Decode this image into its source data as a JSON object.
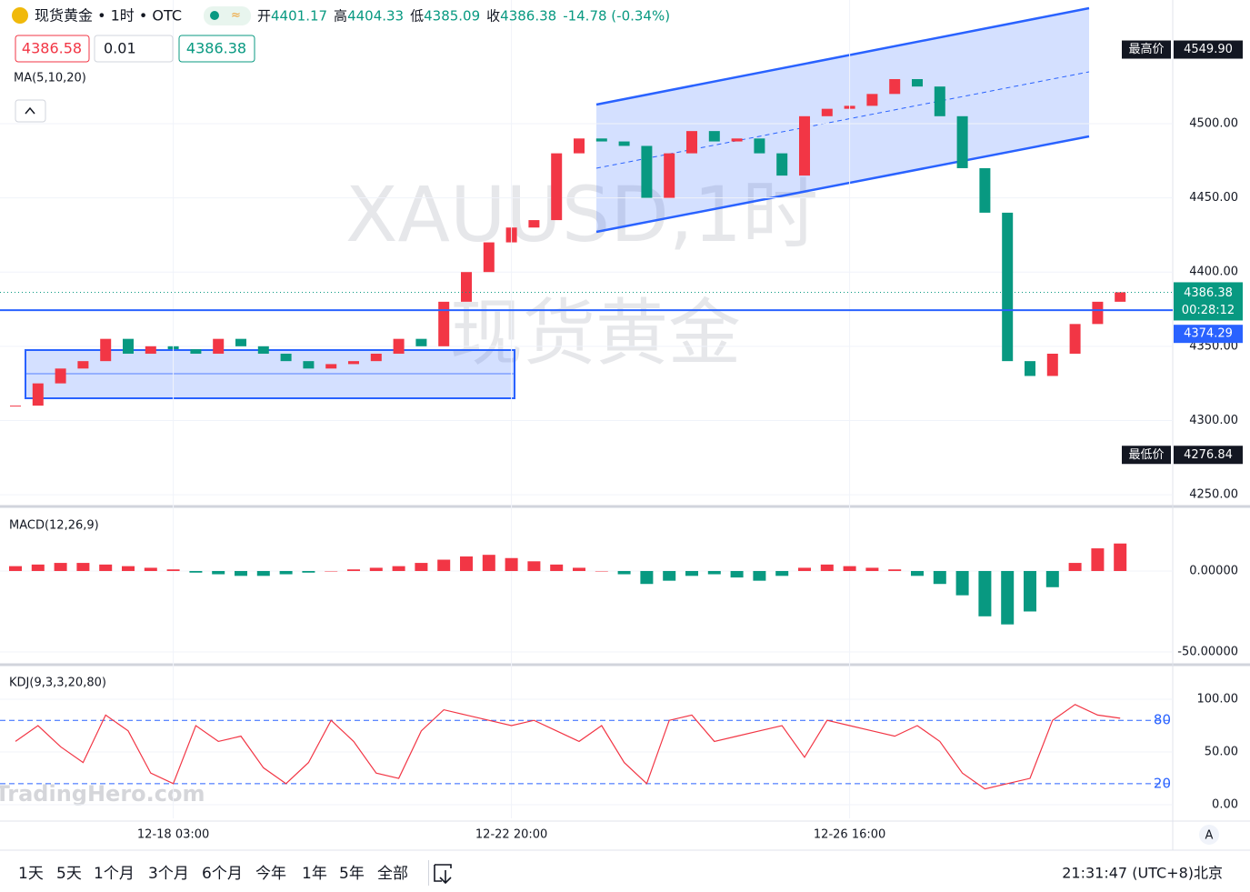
{
  "header": {
    "symbol": "现货黄金 • 1时 • OTC",
    "ohlc": [
      [
        "开",
        "4401.17"
      ],
      [
        "高",
        "4404.33"
      ],
      [
        "低",
        "4385.09"
      ],
      [
        "收",
        "4386.38"
      ]
    ],
    "change": "-14.78 (-0.34%)",
    "bid": "4386.58",
    "qty": "0.01",
    "ask": "4386.38",
    "indicator": "MA(5,10,20)",
    "watermark_symbol": "XAUUSD,1时",
    "watermark_name": "现货黄金",
    "brand": "TradingHero.com"
  },
  "chart_data": [
    {
      "type": "candlestick",
      "categories": [
        null,
        null,
        null,
        null,
        null,
        null,
        null,
        "12-18 03:00",
        null,
        null,
        null,
        null,
        null,
        null,
        null,
        null,
        null,
        null,
        null,
        null,
        null,
        null,
        "12-22 20:00",
        null,
        null,
        null,
        null,
        null,
        null,
        null,
        null,
        null,
        null,
        null,
        null,
        null,
        null,
        "12-26 16:00",
        null,
        null,
        null,
        null,
        null,
        null,
        null,
        null,
        null,
        null,
        null,
        null
      ],
      "values": [
        4310,
        4325,
        4335,
        4340,
        4355,
        4345,
        4350,
        4348,
        4345,
        4355,
        4350,
        4345,
        4340,
        4335,
        4338,
        4340,
        4345,
        4355,
        4350,
        4380,
        4400,
        4420,
        4430,
        4435,
        4480,
        4490,
        4488,
        4485,
        4450,
        4480,
        4495,
        4488,
        4490,
        4480,
        4465,
        4505,
        4510,
        4512,
        4520,
        4530,
        4525,
        4505,
        4470,
        4440,
        4340,
        4330,
        4345,
        4365,
        4380,
        4386.38
      ],
      "up_color": "#f23645",
      "down_color": "#089981",
      "ylim": [
        4243.3,
        4583.3
      ],
      "yticks": [
        {
          "value": 4250,
          "label": "4250.00"
        },
        {
          "value": 4300,
          "label": "4300.00"
        },
        {
          "value": 4350,
          "label": "4350.00"
        },
        {
          "value": 4400,
          "label": "4400.00"
        },
        {
          "value": 4450,
          "label": "4450.00"
        },
        {
          "value": 4500,
          "label": "4500.00"
        }
      ],
      "grid": true,
      "high_mark": {
        "name": "最高价",
        "value": 4549.9,
        "label": "4549.90"
      },
      "low_mark": {
        "name": "最低价",
        "value": 4276.84,
        "label": "4276.84"
      },
      "last_price": {
        "value": 4386.38,
        "label": "4386.38",
        "countdown": "00:28:12"
      },
      "hline": {
        "value": 4374.29,
        "label": "4374.29",
        "color": "#2962ff"
      }
    },
    {
      "type": "bar",
      "title": "MACD(12,26,9)",
      "values": [
        3,
        4,
        5,
        5,
        4,
        3,
        2,
        1,
        -1,
        -2,
        -3,
        -3,
        -2,
        -1,
        0,
        1,
        2,
        3,
        5,
        7,
        9,
        10,
        8,
        6,
        4,
        2,
        0,
        -2,
        -8,
        -6,
        -3,
        -2,
        -4,
        -6,
        -3,
        2,
        4,
        3,
        2,
        1,
        -3,
        -8,
        -15,
        -28,
        -33,
        -25,
        -10,
        5,
        14,
        17
      ],
      "up_color": "#f23645",
      "down_color": "#089981",
      "ylim": [
        -56.2,
        38.2
      ],
      "yticks": [
        {
          "value": 0,
          "label": "0.00000"
        },
        {
          "value": -50,
          "label": "-50.00000"
        }
      ]
    },
    {
      "type": "line",
      "title": "KDJ(9,3,3,20,80)",
      "values": [
        60,
        75,
        55,
        40,
        85,
        70,
        30,
        20,
        75,
        60,
        65,
        35,
        20,
        40,
        80,
        60,
        30,
        25,
        70,
        90,
        85,
        80,
        75,
        80,
        70,
        60,
        75,
        40,
        20,
        80,
        85,
        60,
        65,
        70,
        75,
        45,
        80,
        75,
        70,
        65,
        75,
        60,
        30,
        15,
        20,
        25,
        80,
        95,
        85,
        82
      ],
      "color": "#f23645",
      "ylim": [
        -12.9,
        129.3
      ],
      "yticks": [
        {
          "value": 0,
          "label": "0.00"
        },
        {
          "value": 50,
          "label": "50.00"
        },
        {
          "value": 100,
          "label": "100.00"
        }
      ],
      "reference_lines": [
        80,
        20
      ]
    }
  ],
  "toolbar": {
    "ranges": [
      "1天",
      "5天",
      "1个月",
      "3个月",
      "6个月",
      "今年",
      "1年",
      "5年",
      "全部"
    ],
    "clock": "21:31:47 (UTC+8)北京",
    "auto": "A"
  }
}
